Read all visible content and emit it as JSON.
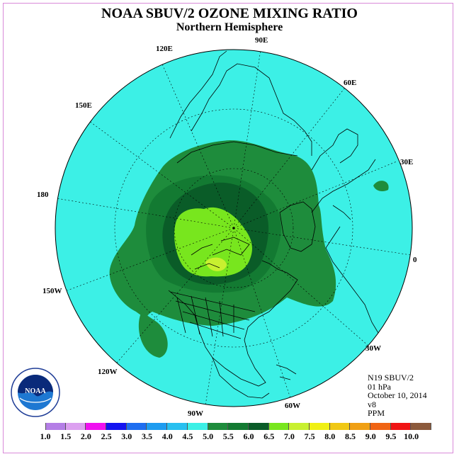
{
  "title": "NOAA SBUV/2 OZONE MIXING RATIO",
  "subtitle": "Northern Hemisphere",
  "longitude_labels": [
    "90E",
    "60E",
    "30E",
    "0",
    "30W",
    "60W",
    "90W",
    "120W",
    "150W",
    "180",
    "150E",
    "120E"
  ],
  "info": {
    "instrument": "N19 SBUV/2",
    "level": "01 hPa",
    "date": "October 10, 2014",
    "version": "v8",
    "units": "PPM"
  },
  "logo_text": "NOAA",
  "colorbar": {
    "ticks": [
      "1.0",
      "1.5",
      "2.0",
      "2.5",
      "3.0",
      "3.5",
      "4.0",
      "4.5",
      "5.0",
      "5.5",
      "6.0",
      "6.5",
      "7.0",
      "7.5",
      "8.0",
      "8.5",
      "9.0",
      "9.5",
      "10.0"
    ],
    "colors": [
      "#b47ee6",
      "#dca0f0",
      "#f010f0",
      "#1414f0",
      "#1e6ef0",
      "#1e9cf0",
      "#28c0f0",
      "#3cf0e6",
      "#1e8c3c",
      "#137a32",
      "#0a5c28",
      "#78e61e",
      "#c8f030",
      "#f0f014",
      "#f0c814",
      "#f0a014",
      "#f06414",
      "#f01414",
      "#8c5a3c"
    ]
  },
  "map_colors": {
    "ocean_fill": "#3cf0e6",
    "band_55": "#1e8c3c",
    "band_60": "#137a32",
    "band_65": "#0a5c28",
    "band_70": "#78e61e",
    "band_75": "#c8f030"
  }
}
